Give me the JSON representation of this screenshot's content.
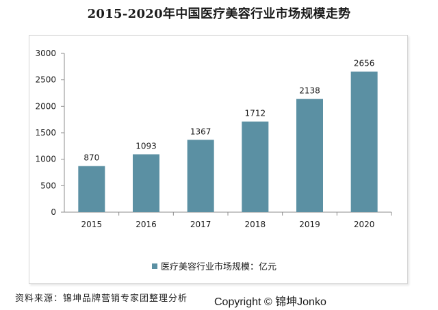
{
  "chart_data": {
    "type": "bar",
    "title": "2015-2020年中国医疗美容行业市场规模走势",
    "categories": [
      "2015",
      "2016",
      "2017",
      "2018",
      "2019",
      "2020"
    ],
    "series": [
      {
        "name": "医疗美容行业市场规模：亿元",
        "values": [
          870,
          1093,
          1367,
          1712,
          2138,
          2656
        ],
        "color": "#5b90a3"
      }
    ],
    "y_ticks": [
      "0",
      "500",
      "1000",
      "1500",
      "2000",
      "2500",
      "3000"
    ],
    "ylim": [
      0,
      3000
    ],
    "xlabel": "",
    "ylabel": "",
    "legend_position": "bottom",
    "grid": false
  },
  "footer": {
    "source": "资料来源：锦坤品牌营销专家团整理分析",
    "copyright": "Copyright © 锦坤Jonko"
  }
}
